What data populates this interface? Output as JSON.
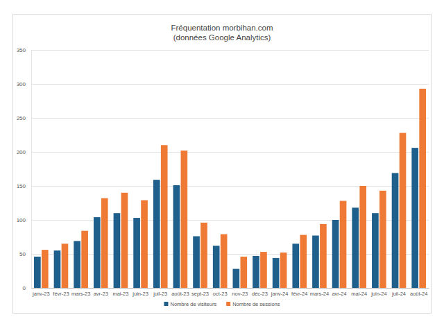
{
  "chart_data": {
    "type": "bar",
    "title": "Fréquentation morbihan.com",
    "subtitle": "(données Google Analytics)",
    "categories": [
      "janv-23",
      "févr-23",
      "mars-23",
      "avr-23",
      "mai-23",
      "juin-23",
      "juil-23",
      "août-23",
      "sept-23",
      "oct-23",
      "nov-23",
      "déc-23",
      "janv-24",
      "févr-24",
      "mars-24",
      "avr-24",
      "mai-24",
      "juin-24",
      "juil-24",
      "août-24"
    ],
    "series": [
      {
        "name": "Nombre de visiteurs",
        "color": "#1f5f8b",
        "values": [
          46,
          55,
          69,
          104,
          110,
          103,
          159,
          151,
          76,
          62,
          28,
          47,
          44,
          65,
          77,
          100,
          118,
          110,
          169,
          206
        ]
      },
      {
        "name": "Nombre de sessions",
        "color": "#ef7a35",
        "values": [
          56,
          65,
          84,
          132,
          140,
          129,
          210,
          202,
          96,
          79,
          46,
          53,
          52,
          78,
          94,
          128,
          150,
          143,
          228,
          293
        ]
      }
    ],
    "ylim": [
      0,
      350
    ],
    "yticks": [
      0,
      50,
      100,
      150,
      200,
      250,
      300,
      350
    ],
    "grid": true,
    "legend": "bottom"
  }
}
